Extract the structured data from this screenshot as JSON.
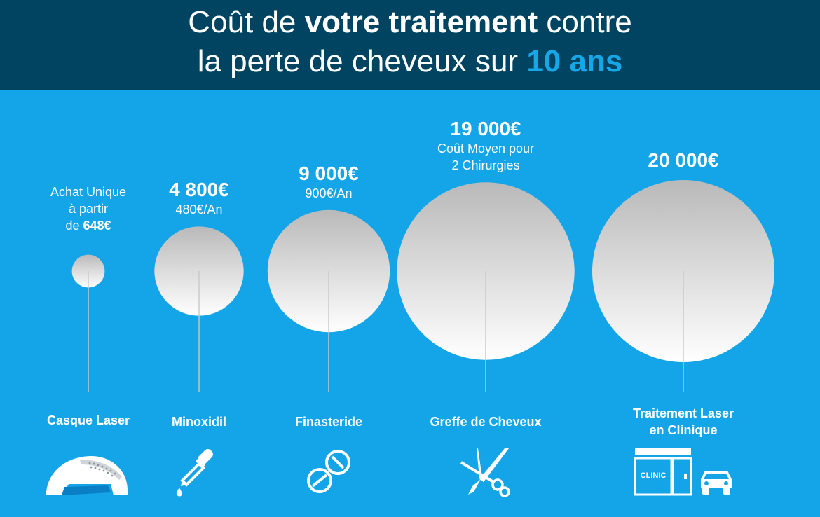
{
  "header": {
    "line1_pre": "Coût de ",
    "line1_bold": "votre traitement",
    "line1_post": " contre",
    "line2_pre": "la perte de cheveux sur ",
    "line2_accent": "10 ans",
    "accent_color": "#15a8e9",
    "background": "#004461"
  },
  "chart_data": {
    "type": "bubble",
    "title": "Coût de votre traitement contre la perte de cheveux sur 10 ans",
    "unit": "€",
    "series": [
      {
        "name": "Casque Laser",
        "value": 648,
        "cost_label": "",
        "sub_lines": [
          "Achat Unique",
          "à partir"
        ],
        "sub_last_pre": "de ",
        "sub_last_bold": "648€",
        "icon": "laser-helmet-icon"
      },
      {
        "name": "Minoxidil",
        "value": 4800,
        "cost_label": "4 800€",
        "sub_lines": [
          "480€/An"
        ],
        "icon": "dropper-icon"
      },
      {
        "name": "Finasteride",
        "value": 9000,
        "cost_label": "9 000€",
        "sub_lines": [
          "900€/An"
        ],
        "icon": "pills-icon"
      },
      {
        "name": "Greffe de Cheveux",
        "value": 19000,
        "cost_label": "19 000€",
        "sub_lines": [
          "Coût Moyen pour",
          "2 Chirurgies"
        ],
        "icon": "scalpel-scissors-icon"
      },
      {
        "name": "Traitement Laser en Clinique",
        "name_lines": [
          "Traitement Laser",
          "en Clinique"
        ],
        "value": 20000,
        "cost_label": "20 000€",
        "sub_lines": [],
        "icon": "clinic-icon"
      }
    ],
    "clinic_sign": "CLINIC",
    "colors": {
      "background": "#13a5e7",
      "bubble_top": "#b9b9b9",
      "bubble_bottom": "#ffffff",
      "outline": "#1c3a55",
      "text": "#ffffff"
    }
  }
}
